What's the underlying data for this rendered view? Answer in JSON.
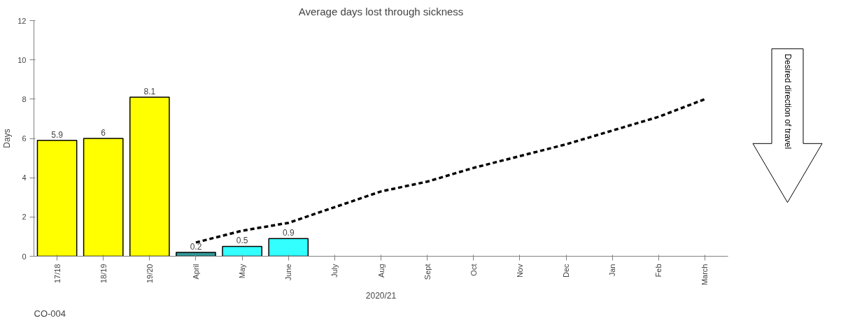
{
  "chart_data": {
    "type": "bar",
    "title": "Average days lost through sickness",
    "xlabel": "2020/21",
    "ylabel": "Days",
    "categories": [
      "17/18",
      "18/19",
      "19/20",
      "April",
      "May",
      "June",
      "July",
      "Aug",
      "Sept",
      "Oct",
      "Nov",
      "Dec",
      "Jan",
      "Feb",
      "March"
    ],
    "ylim": [
      0,
      12
    ],
    "yticks": [
      0,
      2,
      4,
      6,
      8,
      10,
      12
    ],
    "grid": false,
    "series": [
      {
        "colors": [
          "#ffff00",
          "#ffff00",
          "#ffff00",
          "#339999",
          "#33ffff",
          "#33ffff",
          null,
          null,
          null,
          null,
          null,
          null,
          null,
          null,
          null
        ],
        "values": [
          5.9,
          6,
          8.1,
          0.2,
          0.5,
          0.9,
          null,
          null,
          null,
          null,
          null,
          null,
          null,
          null,
          null
        ],
        "value_labels": [
          "5.9",
          "6",
          "8.1",
          "0.2",
          "0.5",
          "0.9",
          null,
          null,
          null,
          null,
          null,
          null,
          null,
          null,
          null
        ]
      },
      {
        "type": "line",
        "color": "#000000",
        "line_style": "dashed",
        "values": [
          null,
          null,
          null,
          0.7,
          1.3,
          1.7,
          2.5,
          3.3,
          3.8,
          4.5,
          5.1,
          5.7,
          6.4,
          7.1,
          8.0
        ]
      }
    ],
    "annotations": [
      "CO-004",
      "Desired direction of travel"
    ]
  }
}
